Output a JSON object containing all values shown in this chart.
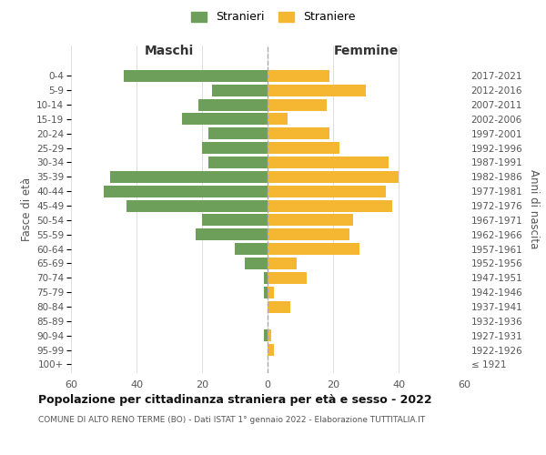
{
  "age_groups": [
    "100+",
    "95-99",
    "90-94",
    "85-89",
    "80-84",
    "75-79",
    "70-74",
    "65-69",
    "60-64",
    "55-59",
    "50-54",
    "45-49",
    "40-44",
    "35-39",
    "30-34",
    "25-29",
    "20-24",
    "15-19",
    "10-14",
    "5-9",
    "0-4"
  ],
  "birth_years": [
    "≤ 1921",
    "1922-1926",
    "1927-1931",
    "1932-1936",
    "1937-1941",
    "1942-1946",
    "1947-1951",
    "1952-1956",
    "1957-1961",
    "1962-1966",
    "1967-1971",
    "1972-1976",
    "1977-1981",
    "1982-1986",
    "1987-1991",
    "1992-1996",
    "1997-2001",
    "2002-2006",
    "2007-2011",
    "2012-2016",
    "2017-2021"
  ],
  "maschi": [
    0,
    0,
    1,
    0,
    0,
    1,
    1,
    7,
    10,
    22,
    20,
    43,
    50,
    48,
    18,
    20,
    18,
    26,
    21,
    17,
    44
  ],
  "femmine": [
    0,
    2,
    1,
    0,
    7,
    2,
    12,
    9,
    28,
    25,
    26,
    38,
    36,
    40,
    37,
    22,
    19,
    6,
    18,
    30,
    19
  ],
  "color_maschi": "#6d9e5a",
  "color_femmine": "#f5b731",
  "title_main": "Popolazione per cittadinanza straniera per età e sesso - 2022",
  "title_sub": "COMUNE DI ALTO RENO TERME (BO) - Dati ISTAT 1° gennaio 2022 - Elaborazione TUTTITALIA.IT",
  "label_maschi": "Stranieri",
  "label_femmine": "Straniere",
  "label_left": "Maschi",
  "label_right": "Femmine",
  "ylabel_left": "Fasce di età",
  "ylabel_right": "Anni di nascita",
  "xlim": 60,
  "background_color": "#ffffff",
  "grid_color": "#d0d0d0"
}
